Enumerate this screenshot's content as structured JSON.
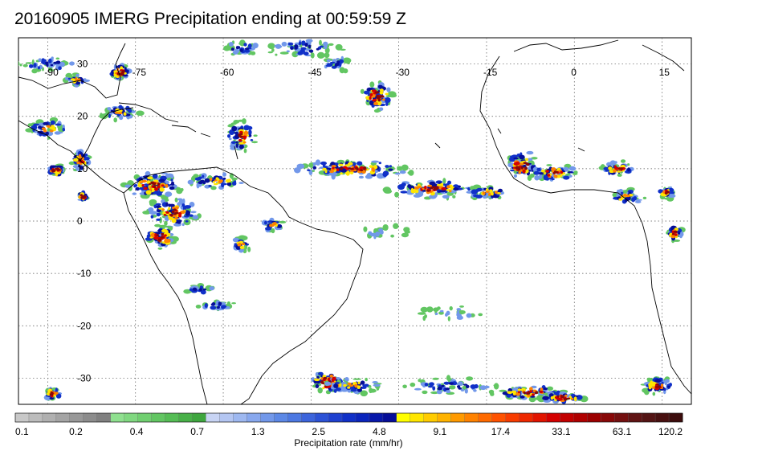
{
  "title": "20160905 IMERG Precipitation ending at 00:59:59 Z",
  "map": {
    "lon_range": [
      -95,
      20
    ],
    "lat_range": [
      -35,
      35
    ],
    "lon_grid": [
      -90,
      -75,
      -60,
      -45,
      -30,
      -15,
      0,
      15
    ],
    "lat_grid": [
      30,
      20,
      10,
      0,
      -10,
      -20,
      -30
    ],
    "lon_labels": [
      "-90",
      "-75",
      "-60",
      "-45",
      "-30",
      "-15",
      "0",
      "15"
    ],
    "lat_labels": [
      "30",
      "20",
      "10",
      "0",
      "-10",
      "-20",
      "-30"
    ],
    "coast_color": "#000000",
    "grid_style": "dotted"
  },
  "colorbar": {
    "title": "Precipitation rate (mm/hr)",
    "tick_labels": [
      "0.1",
      "0.2",
      "0.4",
      "0.7",
      "1.3",
      "2.5",
      "4.8",
      "9.1",
      "17.4",
      "33.1",
      "63.1",
      "120.2"
    ],
    "colors": [
      "#c8c8c8",
      "#bcbcbc",
      "#b0b0b0",
      "#a4a4a4",
      "#989898",
      "#8c8c8c",
      "#808080",
      "#8fe08f",
      "#80d880",
      "#70cf70",
      "#62c662",
      "#55bd55",
      "#48b048",
      "#3ea63e",
      "#c8d4f4",
      "#b4c6f2",
      "#9eb8f0",
      "#88a8ee",
      "#7298ea",
      "#5c88e6",
      "#4c78e2",
      "#3c64dc",
      "#2c52d6",
      "#1e40d0",
      "#1030c8",
      "#0a24bc",
      "#0818aa",
      "#060e98",
      "#ffff00",
      "#ffe600",
      "#ffcc00",
      "#ffb300",
      "#ff9a00",
      "#ff8200",
      "#ff6a00",
      "#ff5200",
      "#f83c00",
      "#ee2800",
      "#e21400",
      "#d40000",
      "#c20000",
      "#b00000",
      "#9c0000",
      "#880808",
      "#741010",
      "#601414",
      "#541414",
      "#481010",
      "#3c0c0c"
    ]
  }
}
